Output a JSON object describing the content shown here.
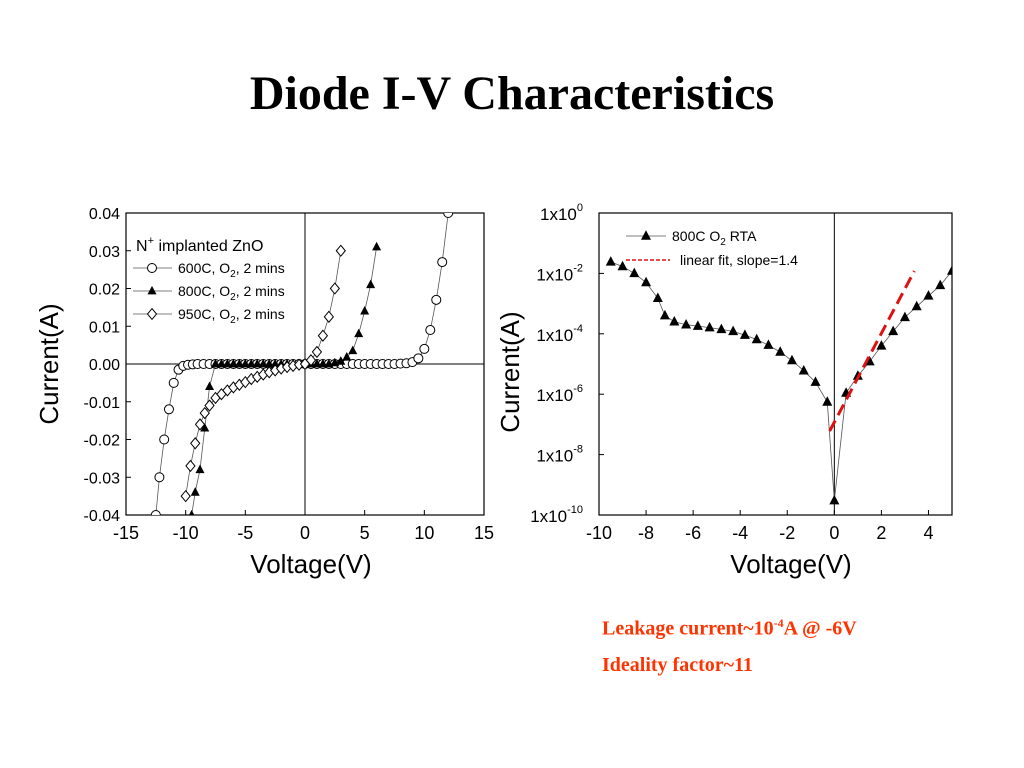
{
  "slide": {
    "title": "Diode I-V Characteristics"
  },
  "notes": {
    "leakage_prefix": "Leakage current~10",
    "leakage_exp": "-4",
    "leakage_suffix": "A @ -6V",
    "ideality": "Ideality factor~11",
    "color": "#ff3300"
  },
  "chart_data": [
    {
      "type": "line",
      "title": "",
      "xlabel": "Voltage(V)",
      "ylabel": "Current(A)",
      "xlim": [
        -15,
        15
      ],
      "ylim": [
        -0.04,
        0.04
      ],
      "x_ticks": [
        -15,
        -10,
        -5,
        0,
        5,
        10,
        15
      ],
      "y_ticks": [
        -0.04,
        -0.03,
        -0.02,
        -0.01,
        0.0,
        0.01,
        0.02,
        0.03,
        0.04
      ],
      "x_tick_labels": [
        "-15",
        "-10",
        "-5",
        "0",
        "5",
        "10",
        "15"
      ],
      "y_tick_labels": [
        "-0.04",
        "-0.03",
        "-0.02",
        "-0.01",
        "0.00",
        "0.01",
        "0.02",
        "0.03",
        "0.04"
      ],
      "grid": false,
      "legend_position": "top-left",
      "legend_title": {
        "main": "N",
        "sup": "+",
        "rest": " implanted ZnO"
      },
      "series": [
        {
          "name": {
            "pre": "600C, O",
            "sub": "2",
            "post": ", 2 mins"
          },
          "marker": "circle-open",
          "points": [
            [
              -12.5,
              -0.04
            ],
            [
              -12.2,
              -0.03
            ],
            [
              -11.8,
              -0.02
            ],
            [
              -11.4,
              -0.012
            ],
            [
              -11.0,
              -0.005
            ],
            [
              -10.6,
              -0.0015
            ],
            [
              -10.2,
              -0.0005
            ],
            [
              -9.8,
              -0.0002
            ],
            [
              -9.4,
              -0.0001
            ],
            [
              -9,
              0
            ],
            [
              -8.5,
              0
            ],
            [
              -8,
              0
            ],
            [
              -7.5,
              0
            ],
            [
              -7,
              0
            ],
            [
              -6.5,
              0
            ],
            [
              -6,
              0
            ],
            [
              -5.5,
              0
            ],
            [
              -5,
              0
            ],
            [
              -4.5,
              0
            ],
            [
              -4,
              0
            ],
            [
              -3.5,
              0
            ],
            [
              -3,
              0
            ],
            [
              -2.5,
              0
            ],
            [
              -2,
              0
            ],
            [
              -1.5,
              0
            ],
            [
              -1,
              0
            ],
            [
              -0.5,
              0
            ],
            [
              0,
              0
            ],
            [
              0.5,
              0
            ],
            [
              1,
              0
            ],
            [
              1.5,
              0
            ],
            [
              2,
              0
            ],
            [
              2.5,
              0
            ],
            [
              3,
              0
            ],
            [
              3.5,
              0
            ],
            [
              4,
              0
            ],
            [
              4.5,
              0
            ],
            [
              5,
              0
            ],
            [
              5.5,
              0
            ],
            [
              6,
              0
            ],
            [
              6.5,
              0
            ],
            [
              7,
              0
            ],
            [
              7.5,
              0
            ],
            [
              8,
              0.0001
            ],
            [
              8.5,
              0.0002
            ],
            [
              9,
              0.0005
            ],
            [
              9.5,
              0.0015
            ],
            [
              10,
              0.004
            ],
            [
              10.5,
              0.009
            ],
            [
              11,
              0.017
            ],
            [
              11.5,
              0.027
            ],
            [
              12,
              0.04
            ]
          ]
        },
        {
          "name": {
            "pre": "800C, O",
            "sub": "2",
            "post": ", 2 mins"
          },
          "marker": "triangle-filled",
          "points": [
            [
              -9.5,
              -0.04
            ],
            [
              -9.2,
              -0.034
            ],
            [
              -8.8,
              -0.028
            ],
            [
              -8.4,
              -0.017
            ],
            [
              -8.0,
              -0.006
            ],
            [
              -7.5,
              0
            ],
            [
              -7,
              0
            ],
            [
              -6.5,
              0
            ],
            [
              -6,
              0
            ],
            [
              -5.5,
              0
            ],
            [
              -5,
              0
            ],
            [
              -4.5,
              0
            ],
            [
              -4,
              0
            ],
            [
              -3.5,
              0
            ],
            [
              -3,
              0
            ],
            [
              -2.5,
              0
            ],
            [
              -2,
              0
            ],
            [
              -1.5,
              0
            ],
            [
              -1,
              0
            ],
            [
              -0.5,
              0
            ],
            [
              0,
              0
            ],
            [
              0.5,
              0
            ],
            [
              1,
              0
            ],
            [
              1.5,
              0
            ],
            [
              2,
              0
            ],
            [
              2.5,
              0.0003
            ],
            [
              3,
              0.0007
            ],
            [
              3.5,
              0.0018
            ],
            [
              4,
              0.0035
            ],
            [
              4.5,
              0.008
            ],
            [
              5,
              0.014
            ],
            [
              5.5,
              0.021
            ],
            [
              6,
              0.031
            ]
          ]
        },
        {
          "name": {
            "pre": "950C, O",
            "sub": "2",
            "post": ", 2 mins"
          },
          "marker": "diamond-open",
          "points": [
            [
              -10,
              -0.035
            ],
            [
              -9.6,
              -0.027
            ],
            [
              -9.2,
              -0.021
            ],
            [
              -8.8,
              -0.016
            ],
            [
              -8.4,
              -0.013
            ],
            [
              -8,
              -0.011
            ],
            [
              -7.5,
              -0.009
            ],
            [
              -7,
              -0.008
            ],
            [
              -6.5,
              -0.007
            ],
            [
              -6,
              -0.0062
            ],
            [
              -5.5,
              -0.0055
            ],
            [
              -5,
              -0.0048
            ],
            [
              -4.5,
              -0.004
            ],
            [
              -4,
              -0.0034
            ],
            [
              -3.5,
              -0.0028
            ],
            [
              -3,
              -0.0022
            ],
            [
              -2.5,
              -0.0017
            ],
            [
              -2,
              -0.0012
            ],
            [
              -1.5,
              -0.0008
            ],
            [
              -1,
              -0.0005
            ],
            [
              -0.5,
              -0.0002
            ],
            [
              0,
              0
            ],
            [
              0.5,
              0.001
            ],
            [
              1,
              0.0032
            ],
            [
              1.5,
              0.0075
            ],
            [
              2,
              0.0125
            ],
            [
              2.5,
              0.02
            ],
            [
              3,
              0.03
            ]
          ]
        }
      ]
    },
    {
      "type": "scatter",
      "title": "",
      "xlabel": "Voltage(V)",
      "ylabel": "Current(A)",
      "yscale": "log",
      "xlim": [
        -10,
        5
      ],
      "ylim": [
        1e-10,
        1
      ],
      "x_ticks": [
        -10,
        -8,
        -6,
        -4,
        -2,
        0,
        2,
        4
      ],
      "x_tick_labels": [
        "-10",
        "-8",
        "-6",
        "-4",
        "-2",
        "0",
        "2",
        "4"
      ],
      "y_tick_exponents": [
        0,
        -2,
        -4,
        -6,
        -8,
        -10
      ],
      "y_tick_base": "1x10",
      "grid": false,
      "legend_position": "top-center",
      "series": [
        {
          "name": {
            "pre": "800C O",
            "sub": "2",
            "post": " RTA"
          },
          "marker": "triangle-filled",
          "points": [
            [
              -9.5,
              0.024
            ],
            [
              -9.0,
              0.017
            ],
            [
              -8.5,
              0.01
            ],
            [
              -8.0,
              0.005
            ],
            [
              -7.5,
              0.0015
            ],
            [
              -7.2,
              0.0004
            ],
            [
              -6.8,
              0.00025
            ],
            [
              -6.3,
              0.0002
            ],
            [
              -5.8,
              0.00018
            ],
            [
              -5.3,
              0.00016
            ],
            [
              -4.8,
              0.00014
            ],
            [
              -4.3,
              0.00012
            ],
            [
              -3.8,
              9e-05
            ],
            [
              -3.3,
              6.5e-05
            ],
            [
              -2.8,
              4.2e-05
            ],
            [
              -2.3,
              2.5e-05
            ],
            [
              -1.8,
              1.3e-05
            ],
            [
              -1.3,
              6e-06
            ],
            [
              -0.8,
              2.5e-06
            ],
            [
              -0.3,
              5.5e-07
            ],
            [
              0,
              3e-10
            ],
            [
              0.5,
              1.1e-06
            ],
            [
              1,
              4e-06
            ],
            [
              1.5,
              1.2e-05
            ],
            [
              2,
              4e-05
            ],
            [
              2.5,
              0.00012
            ],
            [
              3,
              0.00035
            ],
            [
              3.5,
              0.0008
            ],
            [
              4,
              0.0018
            ],
            [
              4.5,
              0.004
            ],
            [
              5,
              0.012
            ]
          ]
        },
        {
          "name": {
            "pre": "linear fit, slope=1.4",
            "sub": "",
            "post": ""
          },
          "marker": "none",
          "line_style": "dashed",
          "color": "#dd1111",
          "points": [
            [
              -0.2,
              6e-08
            ],
            [
              3.4,
              0.012
            ]
          ]
        }
      ]
    }
  ]
}
